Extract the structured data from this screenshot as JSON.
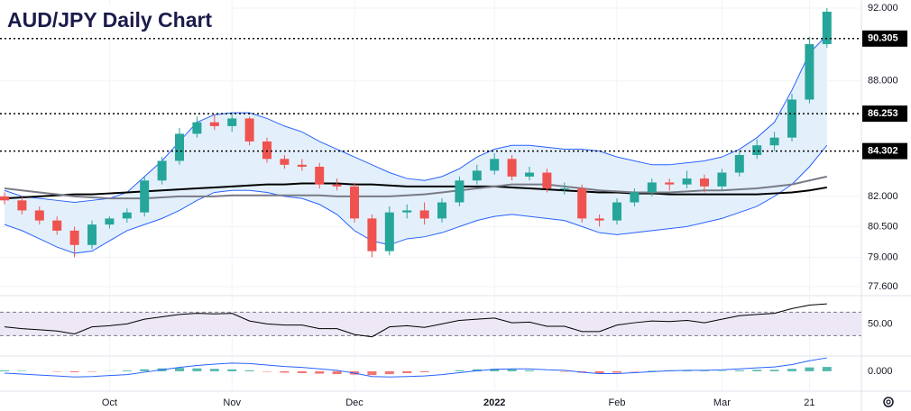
{
  "chart_data": [
    {
      "type": "candlestick",
      "title": "AUD/JPY Daily Chart",
      "log": true,
      "grid": true,
      "up_color": "#26a69a",
      "down_color": "#ef5350",
      "open": [
        82.0,
        81.8,
        81.3,
        80.8,
        80.3,
        79.6,
        80.6,
        80.9,
        81.2,
        82.8,
        83.8,
        85.2,
        85.8,
        85.6,
        86.0,
        84.8,
        83.9,
        83.6,
        83.5,
        82.6,
        82.5,
        80.9,
        79.3,
        81.2,
        81.3,
        80.9,
        81.7,
        82.8,
        83.3,
        83.9,
        83.0,
        83.2,
        82.4,
        82.4,
        80.9,
        80.8,
        81.7,
        82.2,
        82.7,
        82.6,
        82.9,
        82.5,
        83.2,
        84.1,
        84.6,
        85.0,
        87.0,
        90.0
      ],
      "high": [
        82.2,
        82.0,
        81.5,
        81.0,
        80.5,
        80.8,
        81.0,
        81.4,
        83.0,
        84.0,
        85.5,
        86.1,
        86.2,
        86.3,
        86.1,
        85.0,
        84.1,
        83.9,
        83.7,
        82.9,
        82.7,
        81.1,
        81.5,
        81.6,
        81.7,
        81.9,
        83.0,
        83.6,
        84.2,
        84.1,
        83.5,
        83.4,
        82.7,
        82.6,
        81.1,
        81.9,
        82.4,
        82.9,
        82.9,
        83.3,
        83.1,
        83.4,
        84.3,
        84.9,
        85.3,
        87.3,
        90.4,
        92.0
      ],
      "low": [
        81.6,
        81.1,
        80.6,
        80.1,
        79.0,
        79.4,
        80.4,
        80.7,
        81.0,
        82.6,
        83.6,
        85.0,
        85.4,
        85.3,
        84.6,
        83.7,
        83.4,
        83.3,
        82.4,
        82.3,
        80.7,
        79.0,
        79.1,
        80.9,
        80.6,
        80.7,
        81.5,
        82.6,
        83.1,
        82.8,
        82.8,
        82.2,
        82.1,
        80.7,
        80.5,
        80.6,
        81.5,
        82.0,
        82.3,
        82.4,
        82.2,
        82.3,
        83.0,
        83.9,
        84.3,
        84.8,
        86.8,
        89.8
      ],
      "close": [
        81.8,
        81.3,
        80.8,
        80.3,
        79.6,
        80.6,
        80.9,
        81.2,
        82.8,
        83.8,
        85.2,
        85.8,
        85.6,
        86.0,
        84.8,
        83.9,
        83.6,
        83.5,
        82.6,
        82.5,
        80.9,
        79.3,
        81.2,
        81.3,
        80.9,
        81.7,
        82.8,
        83.3,
        83.9,
        83.0,
        83.2,
        82.4,
        82.4,
        80.9,
        80.8,
        81.7,
        82.2,
        82.7,
        82.6,
        82.9,
        82.5,
        83.2,
        84.1,
        84.6,
        85.0,
        87.0,
        90.0,
        91.8
      ],
      "band": {
        "color": "#2962ff",
        "fill": "#e3f0fb",
        "upper": [
          82.3,
          82.0,
          81.9,
          81.8,
          81.7,
          81.8,
          81.9,
          82.2,
          83.0,
          83.8,
          84.8,
          85.8,
          86.2,
          86.3,
          86.3,
          86.0,
          85.6,
          85.3,
          84.8,
          84.4,
          84.0,
          83.6,
          83.2,
          82.9,
          82.8,
          83.0,
          83.4,
          84.0,
          84.4,
          84.6,
          84.6,
          84.5,
          84.4,
          84.4,
          84.3,
          84.0,
          83.8,
          83.6,
          83.6,
          83.7,
          83.8,
          84.0,
          84.4,
          85.0,
          85.8,
          87.5,
          89.5,
          90.5
        ],
        "lower": [
          80.6,
          80.3,
          79.9,
          79.5,
          79.2,
          79.3,
          79.8,
          80.3,
          80.6,
          80.9,
          81.3,
          81.8,
          82.2,
          82.3,
          82.3,
          82.2,
          82.0,
          81.9,
          81.6,
          81.1,
          80.3,
          79.8,
          79.6,
          79.9,
          80.0,
          80.2,
          80.5,
          80.8,
          81.0,
          81.1,
          81.0,
          80.9,
          80.8,
          80.5,
          80.2,
          80.1,
          80.2,
          80.3,
          80.4,
          80.5,
          80.7,
          80.9,
          81.2,
          81.5,
          82.0,
          82.6,
          83.5,
          84.6
        ]
      },
      "lines": [
        {
          "color": "#000000",
          "values": [
            81.9,
            81.95,
            82.0,
            82.05,
            82.1,
            82.1,
            82.15,
            82.2,
            82.25,
            82.3,
            82.35,
            82.4,
            82.45,
            82.5,
            82.55,
            82.6,
            82.6,
            82.65,
            82.65,
            82.65,
            82.6,
            82.6,
            82.55,
            82.5,
            82.5,
            82.5,
            82.5,
            82.5,
            82.5,
            82.45,
            82.4,
            82.35,
            82.3,
            82.25,
            82.2,
            82.2,
            82.15,
            82.15,
            82.1,
            82.1,
            82.1,
            82.1,
            82.1,
            82.1,
            82.15,
            82.2,
            82.3,
            82.45
          ]
        },
        {
          "color": "#787b86",
          "values": [
            82.4,
            82.3,
            82.2,
            82.1,
            82.0,
            81.95,
            81.9,
            81.9,
            81.9,
            81.95,
            82.0,
            82.0,
            82.0,
            82.05,
            82.05,
            82.05,
            82.05,
            82.05,
            82.05,
            82.0,
            82.0,
            82.0,
            82.0,
            82.05,
            82.1,
            82.2,
            82.3,
            82.4,
            82.5,
            82.6,
            82.6,
            82.6,
            82.5,
            82.4,
            82.3,
            82.25,
            82.2,
            82.2,
            82.2,
            82.25,
            82.3,
            82.3,
            82.35,
            82.4,
            82.5,
            82.6,
            82.8,
            83.0
          ]
        }
      ],
      "levels": [
        {
          "value": 90.305,
          "label": "90.305"
        },
        {
          "value": 86.253,
          "label": "86.253"
        },
        {
          "value": 84.302,
          "label": "84.302"
        }
      ],
      "ylim": [
        77.3,
        92.46
      ],
      "yticks": [
        {
          "value": 92,
          "label": "92.000"
        },
        {
          "value": 88,
          "label": "88.000"
        },
        {
          "value": 82,
          "label": "82.000"
        },
        {
          "value": 80.5,
          "label": "80.500"
        },
        {
          "value": 79,
          "label": "79.000"
        },
        {
          "value": 77.6,
          "label": "77.600"
        }
      ]
    },
    {
      "type": "line",
      "color": "#000000",
      "band": [
        30,
        70
      ],
      "band_color": "#ede7f6",
      "values": [
        45,
        42,
        40,
        38,
        33,
        45,
        47,
        50,
        58,
        62,
        66,
        68,
        67,
        68,
        55,
        50,
        48,
        48,
        42,
        42,
        32,
        28,
        45,
        47,
        44,
        50,
        56,
        58,
        60,
        52,
        53,
        46,
        46,
        37,
        37,
        48,
        52,
        55,
        54,
        56,
        52,
        58,
        64,
        66,
        68,
        76,
        82,
        84
      ],
      "ylim": [
        0,
        95
      ],
      "yticks": [
        {
          "value": 50,
          "label": "50.00"
        }
      ]
    },
    {
      "type": "macd",
      "color": "#2962ff",
      "up_color": "#26a69a",
      "down_color": "#ef5350",
      "values": [
        -0.2,
        -0.3,
        -0.4,
        -0.5,
        -0.6,
        -0.55,
        -0.45,
        -0.35,
        -0.1,
        0.15,
        0.4,
        0.6,
        0.75,
        0.85,
        0.8,
        0.65,
        0.5,
        0.4,
        0.25,
        0.1,
        -0.2,
        -0.55,
        -0.6,
        -0.55,
        -0.5,
        -0.35,
        -0.15,
        0.05,
        0.2,
        0.25,
        0.25,
        0.15,
        0.1,
        -0.1,
        -0.25,
        -0.25,
        -0.15,
        -0.05,
        0.05,
        0.1,
        0.1,
        0.15,
        0.25,
        0.35,
        0.45,
        0.7,
        1.1,
        1.4
      ],
      "histogram": [
        0.1,
        0.05,
        0,
        -0.05,
        -0.1,
        -0.05,
        0.02,
        0.08,
        0.2,
        0.3,
        0.35,
        0.3,
        0.25,
        0.2,
        0.1,
        -0.05,
        -0.15,
        -0.2,
        -0.25,
        -0.3,
        -0.35,
        -0.4,
        -0.3,
        -0.2,
        -0.1,
        0,
        0.1,
        0.2,
        0.25,
        0.2,
        0.1,
        0,
        -0.05,
        -0.15,
        -0.2,
        -0.15,
        -0.05,
        0.05,
        0.1,
        0.1,
        0.05,
        0.05,
        0.1,
        0.15,
        0.15,
        0.25,
        0.4,
        0.45
      ],
      "categories": [
        null,
        null,
        null,
        null,
        null,
        null,
        "Oct",
        null,
        null,
        null,
        null,
        null,
        null,
        "Nov",
        null,
        null,
        null,
        null,
        null,
        null,
        "Dec",
        null,
        null,
        null,
        null,
        null,
        null,
        null,
        "2022",
        null,
        null,
        null,
        null,
        null,
        null,
        "Feb",
        null,
        null,
        null,
        null,
        null,
        "Mar",
        null,
        null,
        null,
        null,
        "21",
        null
      ],
      "ylim": [
        -1.9,
        1.5
      ],
      "yticks": [
        {
          "value": 0,
          "label": "0.000"
        }
      ]
    }
  ]
}
